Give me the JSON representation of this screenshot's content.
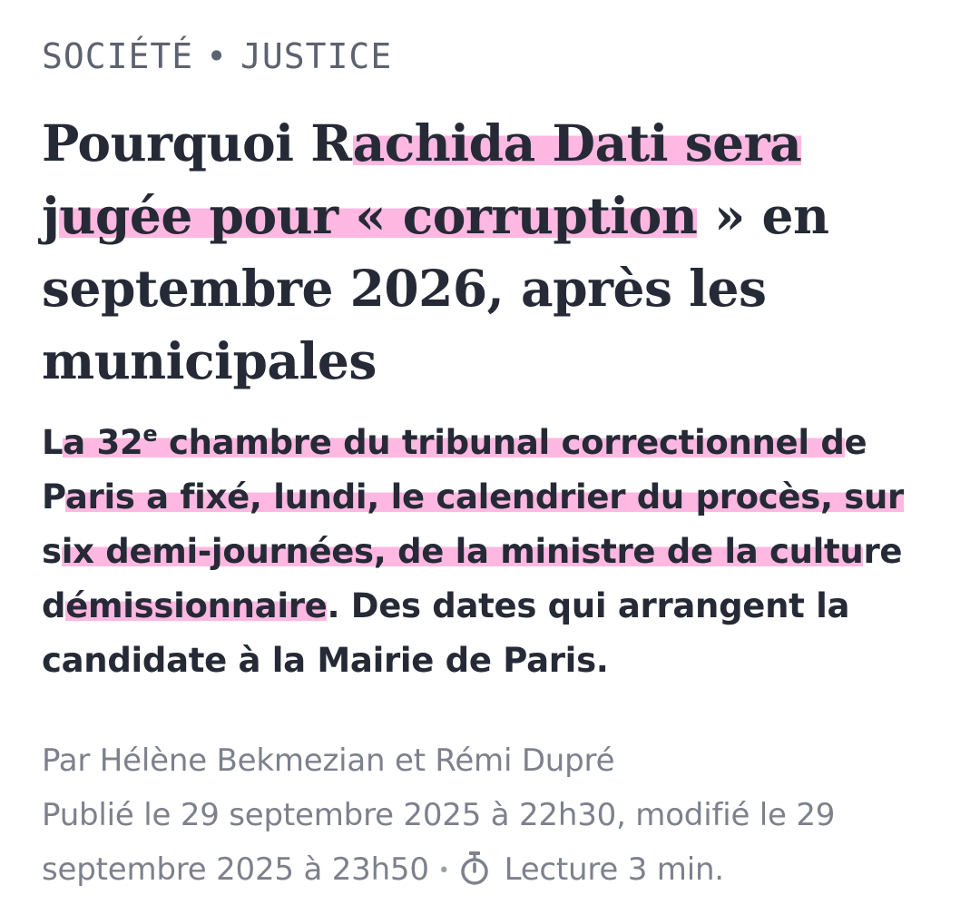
{
  "kicker": {
    "section": "SOCIÉTÉ",
    "separator": "•",
    "subsection": "JUSTICE"
  },
  "headline": {
    "part1": "Pourquoi R",
    "part2_highlight": "achida Dati sera",
    "part3": "j",
    "part4_highlight": "ugée pour « corruption",
    "part5": " » en septembre 2026, après les municipales"
  },
  "chapo": {
    "l1a": "L",
    "l1b_highlight": "a 32",
    "l1c_highlight": "e",
    "l1d_highlight": " chambre du tribunal correctionnel d",
    "l1e": "e",
    "l2a": "P",
    "l2b_highlight": "aris a fixé, lundi, le calendrier du procès, sur",
    "l3a": "s",
    "l3b_highlight": "ix demi-journées, de la ministre de la cultu",
    "l3c": "re",
    "l4a": "d",
    "l4b_highlight": "émissionnaire",
    "l4c": ". Des dates qui arrangent la candidate à la Mairie de Paris."
  },
  "meta": {
    "byline": "Par Hélène Bekmezian et Rémi Dupré",
    "published": "Publié le 29 septembre 2025 à 22h30, modifié le 29 septembre 2025 à 23h50",
    "separator": "•",
    "reading_icon": "timer-icon",
    "reading_time": "Lecture 3 min."
  },
  "colors": {
    "highlight": "#ff7ec8",
    "text": "#252a36",
    "meta": "#7d818c",
    "kicker": "#5d6270"
  }
}
